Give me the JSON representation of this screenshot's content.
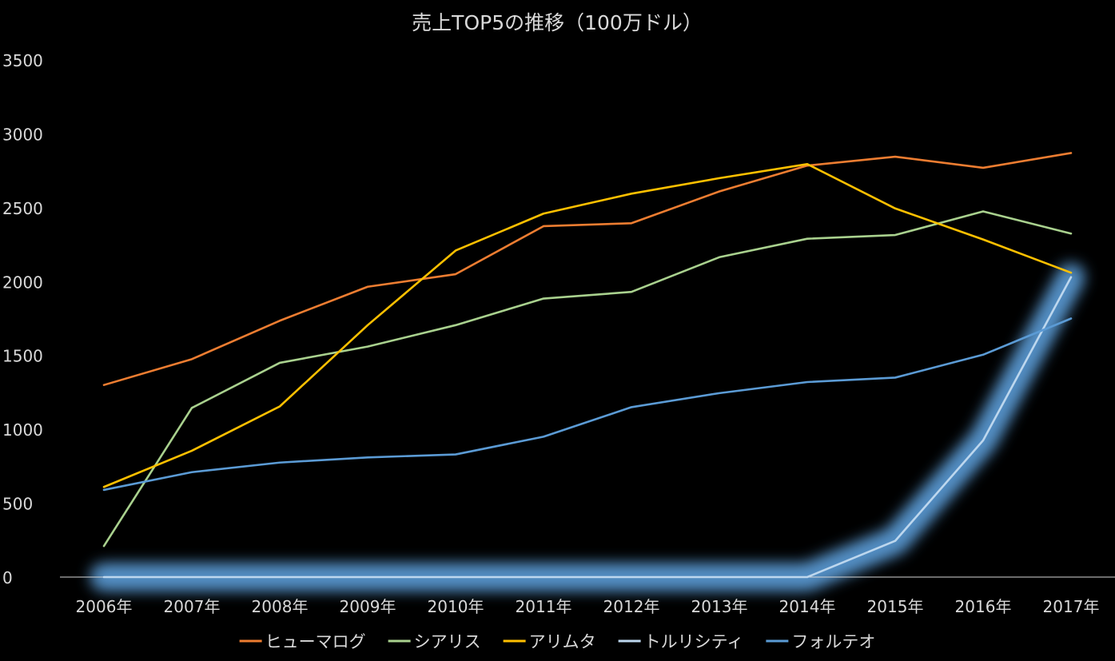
{
  "chart_data": {
    "type": "line",
    "title": "売上TOP5の推移（100万ドル）",
    "categories": [
      "2006年",
      "2007年",
      "2008年",
      "2009年",
      "2010年",
      "2011年",
      "2012年",
      "2013年",
      "2014年",
      "2015年",
      "2016年",
      "2017年"
    ],
    "ylim": [
      0,
      3500
    ],
    "yticks": [
      "0",
      "500",
      "1000",
      "1500",
      "2000",
      "2500",
      "3000",
      "3500"
    ],
    "grid": false,
    "legend_position": "bottom",
    "series": [
      {
        "name": "ヒューマログ",
        "color": "#ED7D31",
        "values": [
          1300,
          1475,
          1735,
          1965,
          2050,
          2375,
          2395,
          2610,
          2785,
          2845,
          2770,
          2870
        ]
      },
      {
        "name": "シアリス",
        "color": "#A9D18E",
        "values": [
          210,
          1145,
          1450,
          1560,
          1705,
          1885,
          1930,
          2165,
          2290,
          2315,
          2475,
          2325
        ]
      },
      {
        "name": "アリムタ",
        "color": "#FFC000",
        "values": [
          610,
          855,
          1155,
          1705,
          2210,
          2460,
          2595,
          2700,
          2795,
          2495,
          2285,
          2060
        ]
      },
      {
        "name": "トルリシティ",
        "color": "#BDD7EE",
        "values": [
          0,
          0,
          0,
          0,
          0,
          0,
          0,
          0,
          0,
          245,
          925,
          2030
        ],
        "glow": true,
        "glow_color": "#5B9BD5"
      },
      {
        "name": "フォルテオ",
        "color": "#5B9BD5",
        "values": [
          590,
          710,
          775,
          810,
          830,
          950,
          1150,
          1245,
          1320,
          1350,
          1505,
          1750
        ]
      }
    ]
  }
}
